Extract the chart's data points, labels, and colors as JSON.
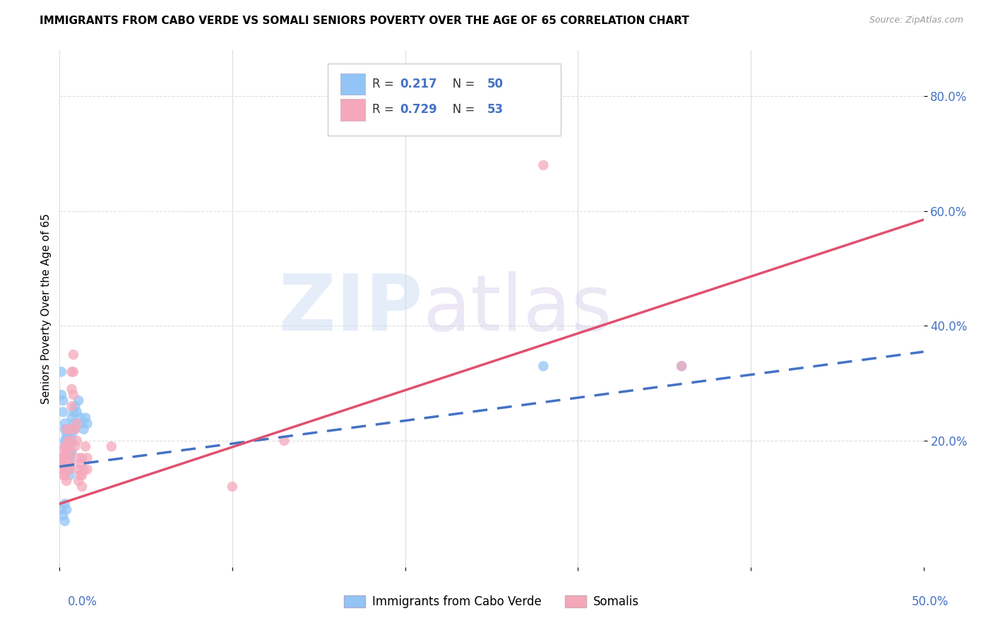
{
  "title": "IMMIGRANTS FROM CABO VERDE VS SOMALI SENIORS POVERTY OVER THE AGE OF 65 CORRELATION CHART",
  "source": "Source: ZipAtlas.com",
  "ylabel": "Seniors Poverty Over the Age of 65",
  "xlim": [
    0.0,
    0.5
  ],
  "ylim": [
    -0.02,
    0.88
  ],
  "ytick_vals": [
    0.2,
    0.4,
    0.6,
    0.8
  ],
  "ytick_labels": [
    "20.0%",
    "40.0%",
    "60.0%",
    "80.0%"
  ],
  "xtick_vals": [
    0.0,
    0.1,
    0.2,
    0.3,
    0.4,
    0.5
  ],
  "cabo_verde_color": "#92c5f5",
  "somali_color": "#f5a8bc",
  "cabo_verde_line_color": "#4472c4",
  "somali_line_color": "#e05070",
  "cabo_verde_R": "0.217",
  "cabo_verde_N": "50",
  "somali_R": "0.729",
  "somali_N": "53",
  "cabo_verde_scatter": [
    [
      0.001,
      0.32
    ],
    [
      0.001,
      0.28
    ],
    [
      0.002,
      0.27
    ],
    [
      0.002,
      0.25
    ],
    [
      0.003,
      0.23
    ],
    [
      0.003,
      0.22
    ],
    [
      0.003,
      0.2
    ],
    [
      0.003,
      0.19
    ],
    [
      0.004,
      0.22
    ],
    [
      0.004,
      0.21
    ],
    [
      0.004,
      0.2
    ],
    [
      0.004,
      0.18
    ],
    [
      0.004,
      0.17
    ],
    [
      0.005,
      0.22
    ],
    [
      0.005,
      0.21
    ],
    [
      0.005,
      0.19
    ],
    [
      0.005,
      0.18
    ],
    [
      0.005,
      0.17
    ],
    [
      0.005,
      0.16
    ],
    [
      0.005,
      0.15
    ],
    [
      0.006,
      0.22
    ],
    [
      0.006,
      0.2
    ],
    [
      0.006,
      0.19
    ],
    [
      0.006,
      0.18
    ],
    [
      0.006,
      0.17
    ],
    [
      0.006,
      0.16
    ],
    [
      0.006,
      0.14
    ],
    [
      0.007,
      0.24
    ],
    [
      0.007,
      0.22
    ],
    [
      0.007,
      0.21
    ],
    [
      0.007,
      0.2
    ],
    [
      0.007,
      0.18
    ],
    [
      0.008,
      0.25
    ],
    [
      0.008,
      0.23
    ],
    [
      0.009,
      0.26
    ],
    [
      0.009,
      0.22
    ],
    [
      0.01,
      0.25
    ],
    [
      0.011,
      0.27
    ],
    [
      0.012,
      0.24
    ],
    [
      0.013,
      0.23
    ],
    [
      0.014,
      0.22
    ],
    [
      0.015,
      0.24
    ],
    [
      0.016,
      0.23
    ],
    [
      0.001,
      0.08
    ],
    [
      0.002,
      0.07
    ],
    [
      0.003,
      0.09
    ],
    [
      0.003,
      0.06
    ],
    [
      0.004,
      0.08
    ],
    [
      0.28,
      0.33
    ],
    [
      0.36,
      0.33
    ]
  ],
  "somali_scatter": [
    [
      0.001,
      0.17
    ],
    [
      0.001,
      0.16
    ],
    [
      0.002,
      0.18
    ],
    [
      0.002,
      0.17
    ],
    [
      0.002,
      0.15
    ],
    [
      0.002,
      0.14
    ],
    [
      0.003,
      0.19
    ],
    [
      0.003,
      0.17
    ],
    [
      0.003,
      0.16
    ],
    [
      0.003,
      0.15
    ],
    [
      0.003,
      0.14
    ],
    [
      0.004,
      0.22
    ],
    [
      0.004,
      0.19
    ],
    [
      0.004,
      0.18
    ],
    [
      0.004,
      0.16
    ],
    [
      0.004,
      0.15
    ],
    [
      0.004,
      0.13
    ],
    [
      0.005,
      0.2
    ],
    [
      0.005,
      0.19
    ],
    [
      0.005,
      0.17
    ],
    [
      0.005,
      0.16
    ],
    [
      0.006,
      0.22
    ],
    [
      0.006,
      0.2
    ],
    [
      0.006,
      0.18
    ],
    [
      0.006,
      0.16
    ],
    [
      0.006,
      0.15
    ],
    [
      0.007,
      0.32
    ],
    [
      0.007,
      0.29
    ],
    [
      0.007,
      0.26
    ],
    [
      0.008,
      0.35
    ],
    [
      0.008,
      0.32
    ],
    [
      0.008,
      0.28
    ],
    [
      0.009,
      0.22
    ],
    [
      0.009,
      0.19
    ],
    [
      0.01,
      0.23
    ],
    [
      0.01,
      0.2
    ],
    [
      0.011,
      0.17
    ],
    [
      0.011,
      0.15
    ],
    [
      0.011,
      0.13
    ],
    [
      0.012,
      0.16
    ],
    [
      0.012,
      0.14
    ],
    [
      0.013,
      0.17
    ],
    [
      0.013,
      0.14
    ],
    [
      0.013,
      0.12
    ],
    [
      0.014,
      0.15
    ],
    [
      0.015,
      0.19
    ],
    [
      0.016,
      0.17
    ],
    [
      0.016,
      0.15
    ],
    [
      0.03,
      0.19
    ],
    [
      0.1,
      0.12
    ],
    [
      0.13,
      0.2
    ],
    [
      0.28,
      0.68
    ],
    [
      0.36,
      0.33
    ]
  ],
  "legend_label_blue": "Immigrants from Cabo Verde",
  "legend_label_pink": "Somalis",
  "background_color": "#ffffff",
  "grid_color": "#dddddd",
  "tick_label_color": "#4472c4",
  "legend_R_color": "#4472c4"
}
